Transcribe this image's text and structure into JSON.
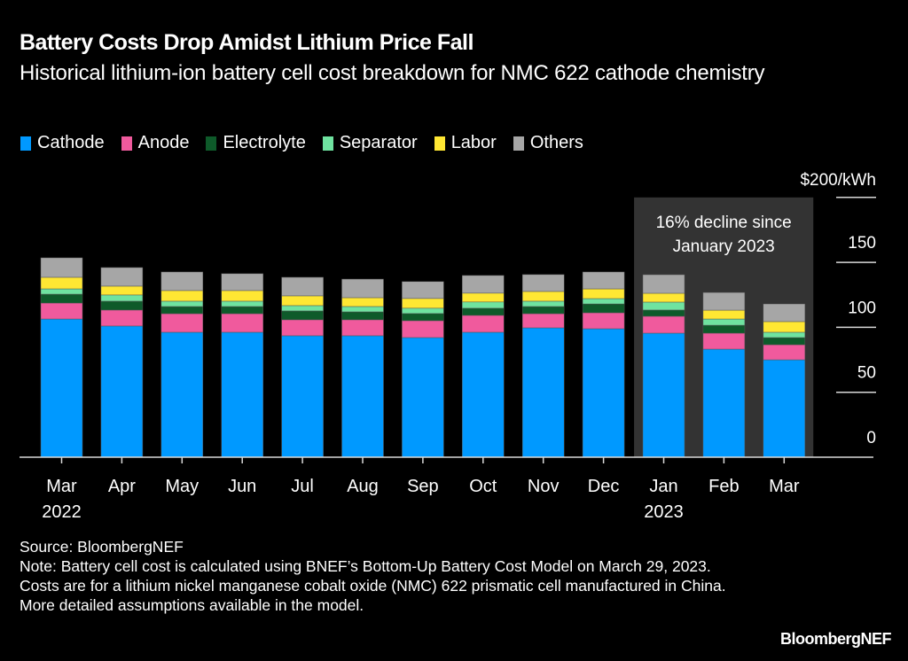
{
  "header": {
    "title": "Battery Costs Drop Amidst Lithium Price Fall",
    "subtitle": "Historical lithium-ion battery cell cost breakdown for NMC 622 cathode chemistry"
  },
  "chart_data": {
    "type": "bar",
    "stacked": true,
    "title": "Battery Costs Drop Amidst Lithium Price Fall",
    "subtitle": "Historical lithium-ion battery cell cost breakdown for NMC 622 cathode chemistry",
    "xlabel": "",
    "ylabel": "$/kWh",
    "ylim": [
      0,
      200
    ],
    "yticks": [
      0,
      50,
      100,
      150,
      200
    ],
    "ytick_labels": [
      "0",
      "50",
      "100",
      "150",
      "$200/kWh"
    ],
    "grid": true,
    "legend_position": "top-left",
    "categories": [
      "Mar",
      "Apr",
      "May",
      "Jun",
      "Jul",
      "Aug",
      "Sep",
      "Oct",
      "Nov",
      "Dec",
      "Jan",
      "Feb",
      "Mar"
    ],
    "category_sublabels": [
      "2022",
      "",
      "",
      "",
      "",
      "",
      "",
      "",
      "",
      "",
      "2023",
      "",
      ""
    ],
    "series": [
      {
        "name": "Cathode",
        "color": "#0099ff",
        "values": [
          106.4,
          101.0,
          96.2,
          96.2,
          93.5,
          93.5,
          92.1,
          96.2,
          99.6,
          98.9,
          95.5,
          83.2,
          75.0
        ]
      },
      {
        "name": "Anode",
        "color": "#f05a9d",
        "values": [
          12.3,
          12.3,
          14.3,
          14.3,
          12.3,
          12.3,
          13.0,
          13.0,
          10.9,
          12.3,
          13.0,
          12.3,
          11.6
        ]
      },
      {
        "name": "Electrolyte",
        "color": "#0e5a2a",
        "values": [
          6.8,
          6.8,
          5.5,
          5.5,
          6.8,
          6.1,
          5.5,
          5.5,
          5.5,
          6.8,
          4.8,
          6.1,
          5.5
        ]
      },
      {
        "name": "Separator",
        "color": "#6fe3a0",
        "values": [
          4.1,
          4.8,
          4.1,
          4.1,
          4.1,
          4.1,
          4.1,
          4.8,
          4.1,
          4.1,
          6.1,
          4.8,
          4.1
        ]
      },
      {
        "name": "Labor",
        "color": "#ffe733",
        "values": [
          8.9,
          6.8,
          8.2,
          8.2,
          7.5,
          6.8,
          7.5,
          6.8,
          7.5,
          7.5,
          6.8,
          6.8,
          8.2
        ]
      },
      {
        "name": "Others",
        "color": "#a6a6a6",
        "values": [
          15.0,
          14.3,
          14.3,
          13.0,
          14.3,
          14.3,
          13.0,
          13.6,
          13.0,
          13.0,
          14.3,
          13.6,
          13.6
        ]
      }
    ],
    "highlight": {
      "from_category_index": 10,
      "to_category_index": 12,
      "label_line1": "16% decline since",
      "label_line2": "January 2023",
      "color": "#333333"
    }
  },
  "footer": {
    "source": "Source: BloombergNEF",
    "note": "Note: Battery cell cost is calculated using BNEF’s Bottom-Up Battery Cost Model on March 29, 2023. Costs are for a lithium nickel manganese cobalt oxide (NMC) 622 prismatic cell manufactured in China. More detailed assumptions available in the model.",
    "brand": "BloombergNEF"
  }
}
